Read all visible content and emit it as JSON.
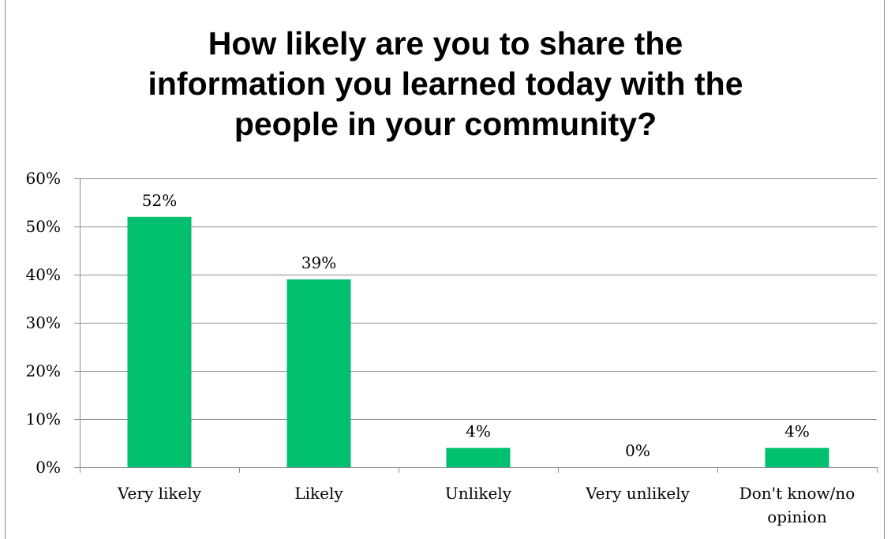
{
  "chart_data": {
    "type": "bar",
    "title_lines": [
      "How likely are you to share the",
      "information you learned today with the",
      "people in your community?"
    ],
    "categories": [
      "Very likely",
      "Likely",
      "Unlikely",
      "Very unlikely",
      "Don't know/no opinion"
    ],
    "category_label_lines": [
      [
        "Very likely"
      ],
      [
        "Likely"
      ],
      [
        "Unlikely"
      ],
      [
        "Very unlikely"
      ],
      [
        "Don't know/no",
        "opinion"
      ]
    ],
    "values": [
      52,
      39,
      4,
      0,
      4
    ],
    "data_labels": [
      "52%",
      "39%",
      "4%",
      "0%",
      "4%"
    ],
    "ylim": [
      0,
      60
    ],
    "y_ticks": [
      0,
      10,
      20,
      30,
      40,
      50,
      60
    ],
    "y_tick_labels": [
      "0%",
      "10%",
      "20%",
      "30%",
      "40%",
      "50%",
      "60%"
    ],
    "xlabel": "",
    "ylabel": "",
    "grid": true,
    "legend": "none",
    "bar_color": "#00bf6f",
    "grid_color": "#8c8c8c"
  }
}
